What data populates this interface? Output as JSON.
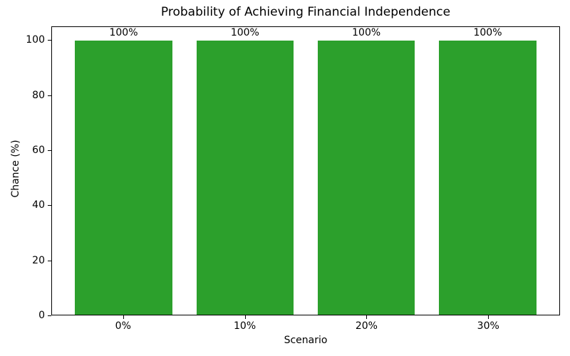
{
  "chart_data": {
    "type": "bar",
    "title": "Probability of Achieving Financial Independence",
    "xlabel": "Scenario",
    "ylabel": "Chance (%)",
    "categories": [
      "0%",
      "10%",
      "20%",
      "30%"
    ],
    "values": [
      100,
      100,
      100,
      100
    ],
    "bar_labels": [
      "100%",
      "100%",
      "100%",
      "100%"
    ],
    "ylim": [
      0,
      105
    ],
    "yticks": [
      0,
      20,
      40,
      60,
      80,
      100
    ],
    "bar_color": "#2ca02c",
    "grid": false,
    "legend_position": "none"
  }
}
